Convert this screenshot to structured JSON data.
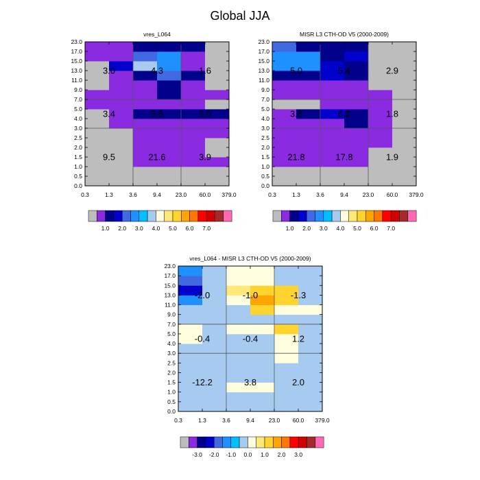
{
  "title": "Global JJA",
  "colors": {
    "abs_scale": [
      "#BDBDBD",
      "#8A2BE2",
      "#00008B",
      "#0000CD",
      "#4169E1",
      "#1E90FF",
      "#00BFFF",
      "#A6CAF0",
      "#FFFFE0",
      "#FFE878",
      "#FFD52D",
      "#FFA500",
      "#FF7700",
      "#FF0000",
      "#D20000",
      "#A52A2A",
      "#FF69B4"
    ],
    "diff_scale": [
      "#BDBDBD",
      "#8A2BE2",
      "#00008B",
      "#0000CD",
      "#4169E1",
      "#1E90FF",
      "#00BFFF",
      "#A6CAF0",
      "#FFFFE0",
      "#FFE878",
      "#FFD52D",
      "#FFA500",
      "#FF7700",
      "#FF0000",
      "#D20000",
      "#A52A2A",
      "#FF69B4"
    ],
    "grid_lines": "#555555"
  },
  "chart_data": [
    {
      "type": "heatmap",
      "title": "vres_L064",
      "x_ticks": [
        "0.3",
        "1.3",
        "3.6",
        "9.4",
        "23.0",
        "60.0",
        "379.0"
      ],
      "y_ticks": [
        "0.0",
        "0.5",
        "1.0",
        "1.5",
        "2.0",
        "2.5",
        "3.0",
        "4.0",
        "5.0",
        "7.0",
        "9.0",
        "11.0",
        "13.0",
        "15.0",
        "17.0",
        "23.0"
      ],
      "x_groups": [
        2,
        4
      ],
      "y_groups": [
        6,
        9
      ],
      "cells": [
        [
          0,
          0,
          0,
          0,
          0,
          0
        ],
        [
          0,
          0,
          0,
          0,
          0,
          0
        ],
        [
          0,
          0,
          1,
          1,
          1,
          1
        ],
        [
          0,
          0,
          1,
          1,
          1,
          0
        ],
        [
          0,
          0,
          1,
          1,
          1,
          0
        ],
        [
          0,
          0,
          1,
          1,
          1,
          1
        ],
        [
          0,
          1,
          1,
          1,
          1,
          1
        ],
        [
          0,
          1,
          2,
          2,
          2,
          2
        ],
        [
          1,
          1,
          1,
          1,
          1,
          0
        ],
        [
          1,
          1,
          1,
          2,
          1,
          1
        ],
        [
          0,
          1,
          1,
          2,
          1,
          0
        ],
        [
          0,
          1,
          2,
          4,
          2,
          0
        ],
        [
          0,
          3,
          7,
          5,
          1,
          0
        ],
        [
          1,
          1,
          4,
          5,
          1,
          0
        ],
        [
          1,
          1,
          2,
          2,
          2,
          0
        ]
      ],
      "annotations": [
        {
          "row": 2,
          "col": 0,
          "text": "3.0"
        },
        {
          "row": 2,
          "col": 1,
          "text": "4.3"
        },
        {
          "row": 2,
          "col": 2,
          "text": "1.6"
        },
        {
          "row": 1,
          "col": 0,
          "text": "3.4"
        },
        {
          "row": 1,
          "col": 1,
          "text": "5.8"
        },
        {
          "row": 1,
          "col": 2,
          "text": "3.0"
        },
        {
          "row": 0,
          "col": 0,
          "text": "9.5"
        },
        {
          "row": 0,
          "col": 1,
          "text": "21.6"
        },
        {
          "row": 0,
          "col": 2,
          "text": "3.9"
        }
      ],
      "legend": {
        "labels": [
          "1.0",
          "2.0",
          "3.0",
          "4.0",
          "5.0",
          "6.0",
          "7.0"
        ],
        "label_start_box": 1
      }
    },
    {
      "type": "heatmap",
      "title": "MISR L3 CTH-OD V5 (2000-2009)",
      "x_ticks": [
        "0.3",
        "1.3",
        "3.6",
        "9.4",
        "23.0",
        "60.0",
        "379.0"
      ],
      "y_ticks": [
        "0.0",
        "0.5",
        "1.0",
        "1.5",
        "2.0",
        "2.5",
        "3.0",
        "4.0",
        "5.0",
        "7.0",
        "9.0",
        "11.0",
        "13.0",
        "15.0",
        "17.0",
        "23.0"
      ],
      "x_groups": [
        2,
        4
      ],
      "y_groups": [
        6,
        9
      ],
      "cells": [
        [
          0,
          0,
          0,
          0,
          0,
          0
        ],
        [
          0,
          0,
          0,
          0,
          0,
          0
        ],
        [
          1,
          1,
          1,
          1,
          0,
          0
        ],
        [
          1,
          1,
          1,
          1,
          0,
          0
        ],
        [
          1,
          1,
          1,
          1,
          1,
          0
        ],
        [
          1,
          1,
          1,
          1,
          1,
          0
        ],
        [
          1,
          1,
          1,
          2,
          1,
          0
        ],
        [
          1,
          2,
          3,
          2,
          1,
          0
        ],
        [
          0,
          0,
          1,
          1,
          1,
          0
        ],
        [
          1,
          1,
          1,
          1,
          1,
          0
        ],
        [
          1,
          1,
          1,
          1,
          0,
          0
        ],
        [
          2,
          2,
          3,
          2,
          0,
          0
        ],
        [
          5,
          5,
          3,
          2,
          0,
          0
        ],
        [
          5,
          5,
          2,
          3,
          0,
          0
        ],
        [
          4,
          2,
          2,
          2,
          0,
          0
        ]
      ],
      "annotations": [
        {
          "row": 2,
          "col": 0,
          "text": "5.0"
        },
        {
          "row": 2,
          "col": 1,
          "text": "5.4"
        },
        {
          "row": 2,
          "col": 2,
          "text": "2.9"
        },
        {
          "row": 1,
          "col": 0,
          "text": "3.8"
        },
        {
          "row": 1,
          "col": 1,
          "text": "6.2"
        },
        {
          "row": 1,
          "col": 2,
          "text": "1.8"
        },
        {
          "row": 0,
          "col": 0,
          "text": "21.8"
        },
        {
          "row": 0,
          "col": 1,
          "text": "17.8"
        },
        {
          "row": 0,
          "col": 2,
          "text": "1.9"
        }
      ],
      "legend": {
        "labels": [
          "1.0",
          "2.0",
          "3.0",
          "4.0",
          "5.0",
          "6.0",
          "7.0"
        ],
        "label_start_box": 1
      }
    },
    {
      "type": "heatmap",
      "title": "vres_L064 - MISR L3 CTH-OD V5 (2000-2009)",
      "x_ticks": [
        "0.3",
        "1.3",
        "3.6",
        "9.4",
        "23.0",
        "60.0",
        "379.0"
      ],
      "y_ticks": [
        "0.0",
        "0.5",
        "1.0",
        "1.5",
        "2.0",
        "2.5",
        "3.0",
        "4.0",
        "5.0",
        "7.0",
        "9.0",
        "11.0",
        "13.0",
        "15.0",
        "17.0",
        "23.0"
      ],
      "x_groups": [
        2,
        4
      ],
      "y_groups": [
        6,
        9
      ],
      "cells": [
        [
          7,
          7,
          7,
          7,
          7,
          7
        ],
        [
          7,
          7,
          7,
          7,
          7,
          7
        ],
        [
          7,
          7,
          8,
          8,
          7,
          7
        ],
        [
          7,
          7,
          7,
          7,
          7,
          7
        ],
        [
          7,
          7,
          7,
          7,
          7,
          7
        ],
        [
          7,
          7,
          7,
          7,
          8,
          7
        ],
        [
          7,
          7,
          7,
          7,
          8,
          7
        ],
        [
          8,
          7,
          7,
          7,
          8,
          7
        ],
        [
          8,
          7,
          8,
          8,
          10,
          7
        ],
        [
          7,
          7,
          7,
          7,
          7,
          7
        ],
        [
          7,
          7,
          7,
          10,
          8,
          8
        ],
        [
          5,
          7,
          8,
          11,
          10,
          7
        ],
        [
          3,
          7,
          9,
          10,
          10,
          7
        ],
        [
          4,
          7,
          8,
          8,
          7,
          7
        ],
        [
          5,
          7,
          8,
          8,
          7,
          7
        ]
      ],
      "annotations": [
        {
          "row": 2,
          "col": 0,
          "text": "-2.0"
        },
        {
          "row": 2,
          "col": 1,
          "text": "-1.0"
        },
        {
          "row": 2,
          "col": 2,
          "text": "-1.3"
        },
        {
          "row": 1,
          "col": 0,
          "text": "-0.4"
        },
        {
          "row": 1,
          "col": 1,
          "text": "-0.4"
        },
        {
          "row": 1,
          "col": 2,
          "text": "1.2"
        },
        {
          "row": 0,
          "col": 0,
          "text": "-12.2"
        },
        {
          "row": 0,
          "col": 1,
          "text": "3.8"
        },
        {
          "row": 0,
          "col": 2,
          "text": "2.0"
        }
      ],
      "legend": {
        "labels": [
          "-3.0",
          "-2.0",
          "-1.0",
          "0.0",
          "1.0",
          "2.0",
          "3.0"
        ],
        "label_start_box": 1
      }
    }
  ]
}
